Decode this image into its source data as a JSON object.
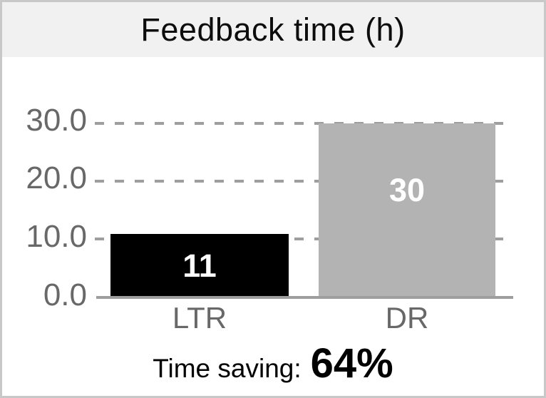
{
  "title": "Feedback time (h)",
  "chart_data": {
    "type": "bar",
    "title": "Feedback time (h)",
    "categories": [
      "LTR",
      "DR"
    ],
    "values": [
      11,
      30
    ],
    "value_labels": [
      "11",
      "30"
    ],
    "ytick_labels": [
      "30.0",
      "20.0",
      "10.0",
      "0.0"
    ],
    "ylim": [
      0,
      30
    ],
    "xlabel": "",
    "ylabel": "",
    "grid": "horizontal-dashed",
    "legend": "none",
    "bar_colors": [
      "#000000",
      "#b3b3b3"
    ],
    "value_label_color": "#ffffff"
  },
  "footer": {
    "label": "Time saving:",
    "value": "64%"
  },
  "colors": {
    "title_band_bg": "#f1f1f1",
    "title_text": "#0d0d0d",
    "axis_text": "#686868",
    "gridline": "#9e9e9e",
    "bar_ltr": "#000000",
    "bar_dr": "#b3b3b3",
    "bar_value_text": "#ffffff",
    "footer_text": "#000000",
    "frame_border": "#c8c8c8",
    "background": "#ffffff"
  }
}
